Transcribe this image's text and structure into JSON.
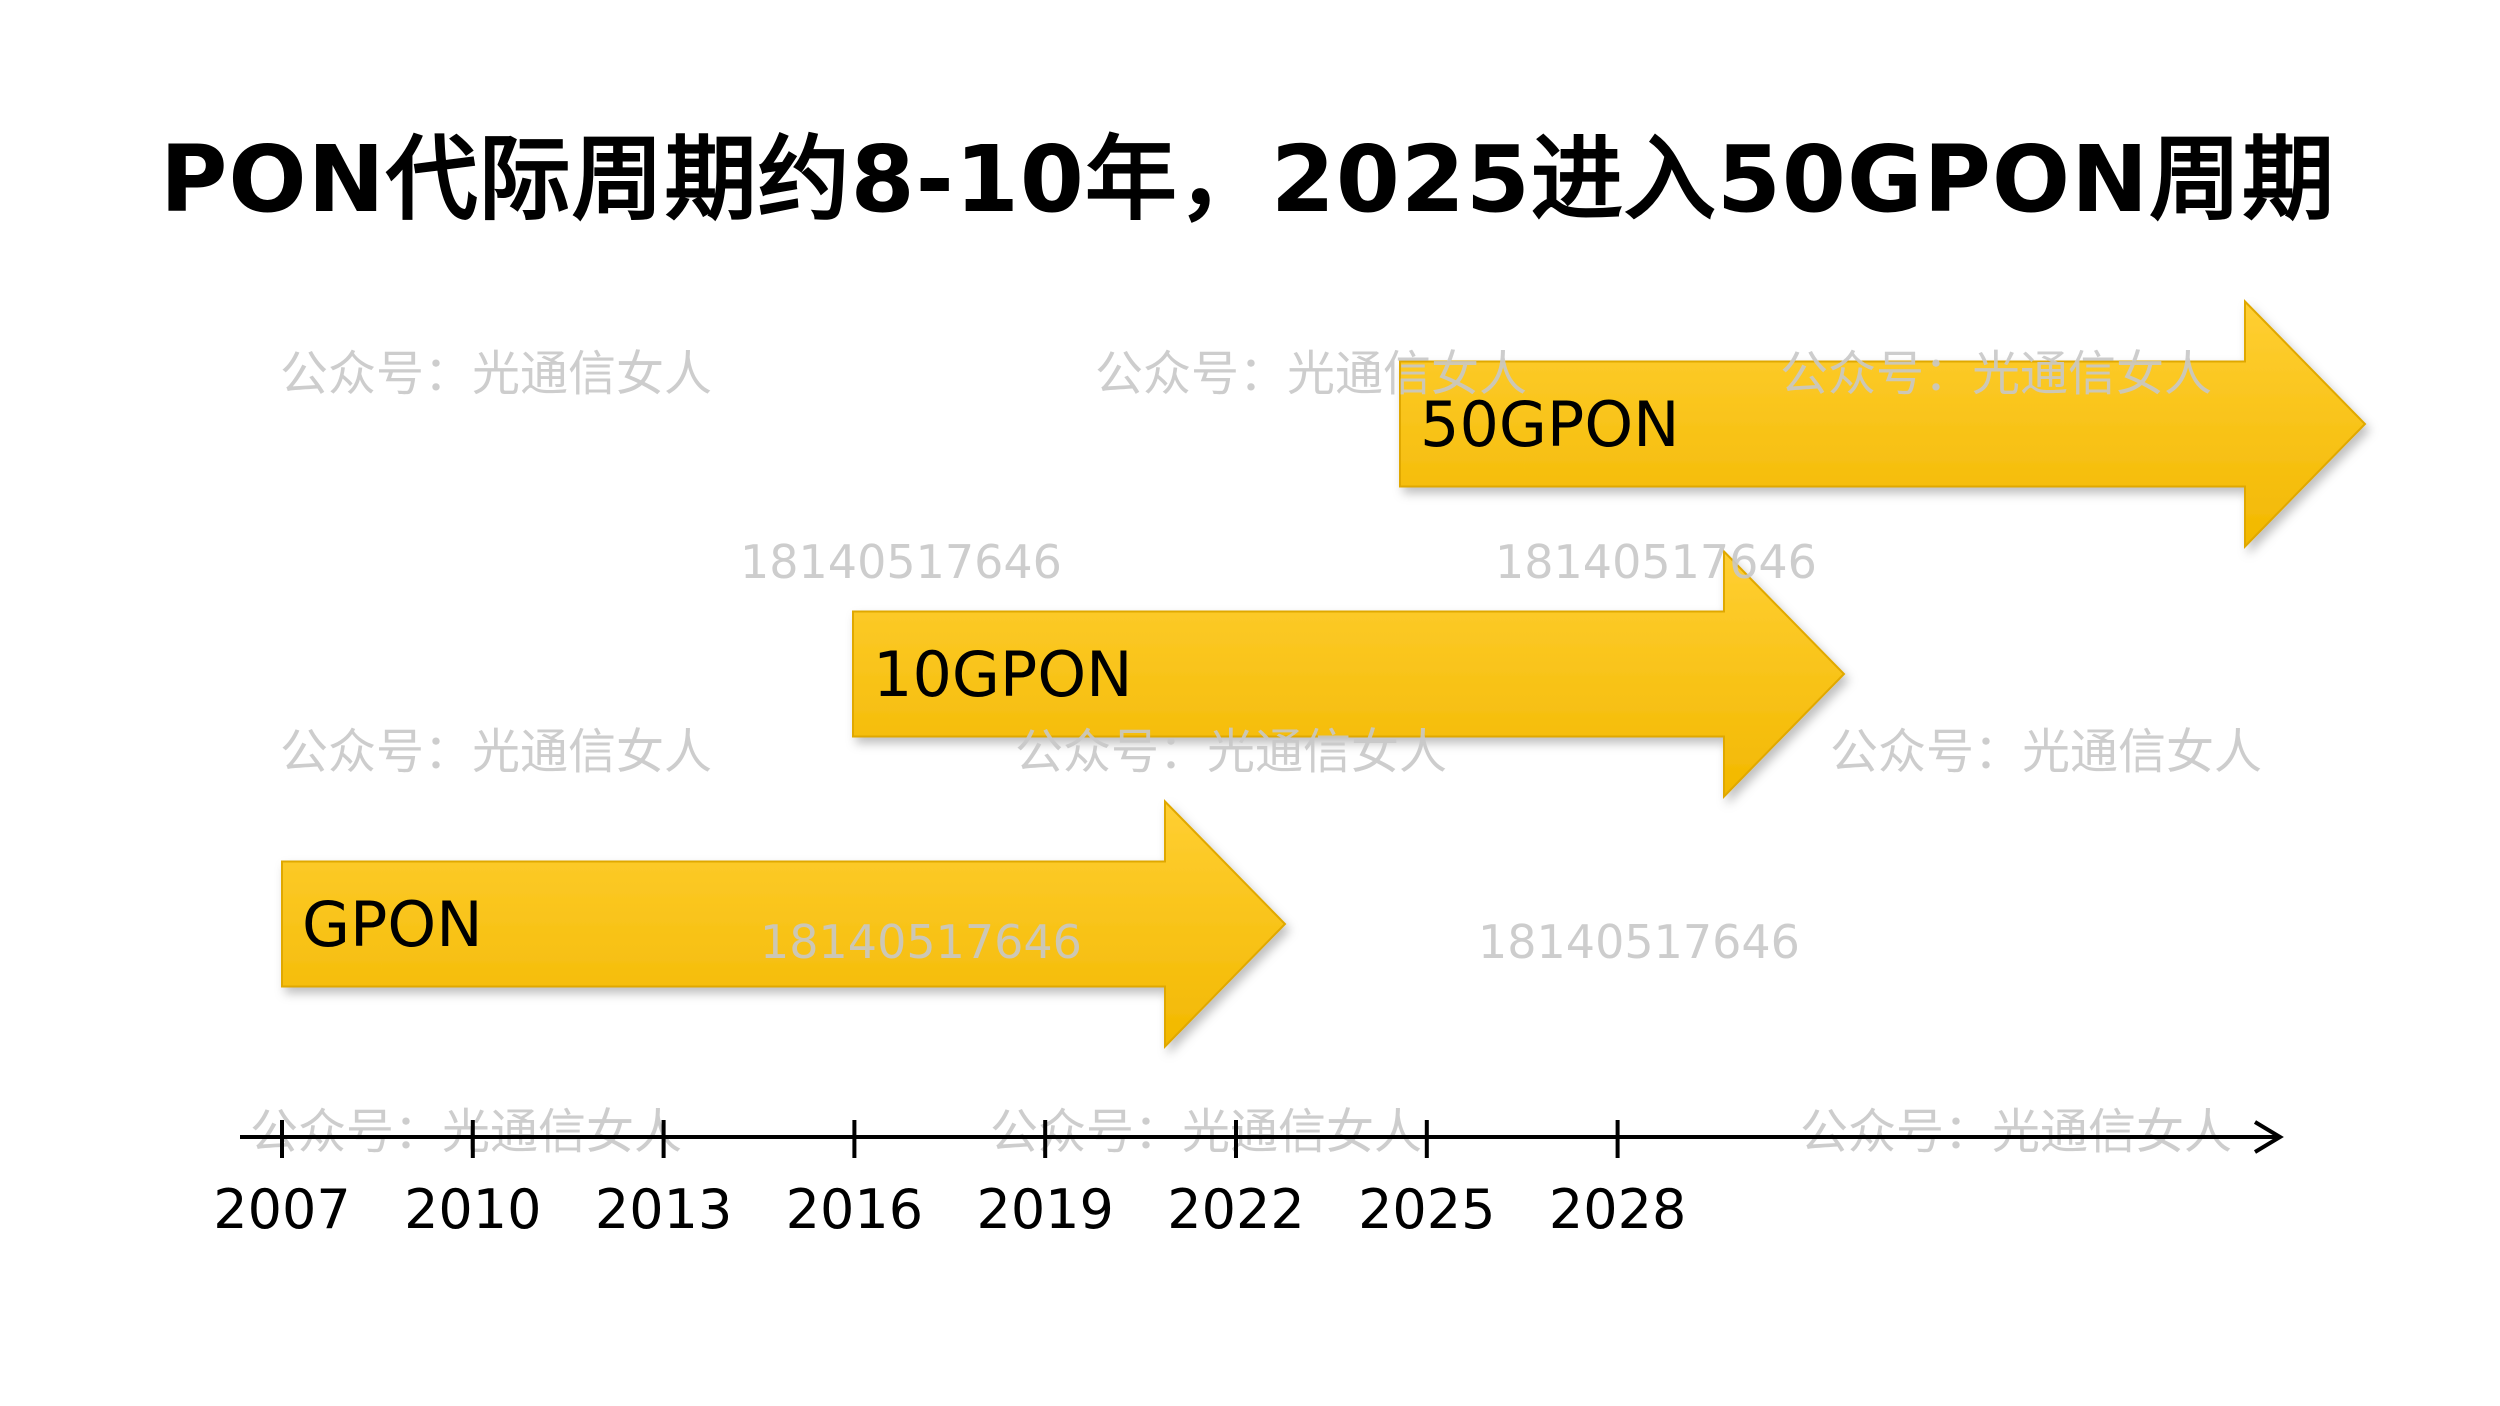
{
  "title": "PON代际周期约8-10年，2025进入50GPON周期",
  "colors": {
    "arrow_light": "#FFCF33",
    "arrow_dark": "#F2B800",
    "arrow_stroke": "#E0A800",
    "axis": "#000000",
    "watermark": "#C8C8C8"
  },
  "timeline": {
    "years": [
      "2007",
      "2010",
      "2013",
      "2016",
      "2019",
      "2022",
      "2025",
      "2028"
    ]
  },
  "generations": [
    {
      "label": "50GPON",
      "start_year": 2025,
      "end_year": 2039
    },
    {
      "label": "10GPON",
      "start_year": 2016,
      "end_year": 2031
    },
    {
      "label": "GPON",
      "start_year": 2007,
      "end_year": 2023
    }
  ],
  "watermarks": [
    "公众号：光通信女人",
    "18140517646"
  ]
}
